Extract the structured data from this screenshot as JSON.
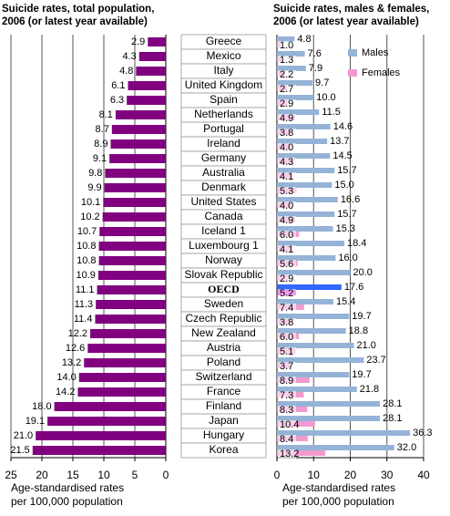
{
  "chart_data": [
    {
      "type": "bar",
      "orientation": "horizontal",
      "title": [
        "Suicide rates, total population,",
        "2006 (or latest year available)"
      ],
      "xlabel": [
        "Age-standardised rates",
        "per 100,000 population"
      ],
      "categories": [
        "Greece",
        "Mexico",
        "Italy",
        "United Kingdom",
        "Spain",
        "Netherlands",
        "Portugal",
        "Ireland",
        "Germany",
        "Australia",
        "Denmark",
        "United States",
        "Canada",
        "Iceland 1",
        "Luxembourg 1",
        "Norway",
        "Slovak Republic",
        "OECD",
        "Sweden",
        "Czech Republic",
        "New Zealand",
        "Austria",
        "Poland",
        "Switzerland",
        "France",
        "Finland",
        "Japan",
        "Hungary",
        "Korea"
      ],
      "values": [
        2.9,
        4.3,
        4.8,
        6.1,
        6.3,
        8.1,
        8.7,
        8.9,
        9.1,
        9.8,
        9.9,
        10.1,
        10.2,
        10.7,
        10.8,
        10.8,
        10.9,
        11.1,
        11.3,
        11.4,
        12.2,
        12.6,
        13.2,
        14.0,
        14.2,
        18.0,
        19.1,
        21.0,
        21.5
      ],
      "value_labels": [
        "2.9",
        "4.3",
        "4.8",
        "6.1",
        "6.3",
        "8.1",
        "8.7",
        "8.9",
        "9.1",
        "9.8",
        "9.9",
        "10.1",
        "10.2",
        "10.7",
        "10.8",
        "10.8",
        "10.9",
        "11.1",
        "11.3",
        "11.4",
        "12.2",
        "12.6",
        "13.2",
        "14.0",
        "14.2",
        "18.0",
        "19.1",
        "21.0",
        "21.5"
      ],
      "color": "#800080",
      "xlim": [
        25,
        0
      ],
      "xticks": [
        25,
        20,
        15,
        10,
        5,
        0
      ],
      "grid": true
    },
    {
      "type": "grouped-bar",
      "orientation": "horizontal",
      "title": [
        "Suicide rates, males & females,",
        "2006 (or latest year available)"
      ],
      "xlabel": [
        "Age-standardised rates",
        "per 100,000 population"
      ],
      "series": [
        {
          "name": "Males",
          "color": "#95b3d7",
          "highlight_color": "#3366ff",
          "values": [
            4.8,
            7.6,
            7.9,
            9.7,
            10.0,
            11.5,
            14.6,
            13.7,
            14.5,
            15.7,
            15.0,
            16.6,
            15.7,
            15.3,
            18.4,
            16.0,
            20.0,
            17.6,
            15.4,
            19.7,
            18.8,
            21.0,
            23.7,
            19.7,
            21.8,
            28.1,
            28.1,
            36.3,
            32.0
          ],
          "value_labels": [
            "4.8",
            "7.6",
            "7.9",
            "9.7",
            "10.0",
            "11.5",
            "14.6",
            "13.7",
            "14.5",
            "15.7",
            "15.0",
            "16.6",
            "15.7",
            "15.3",
            "18.4",
            "16.0",
            "20.0",
            "17.6",
            "15.4",
            "19.7",
            "18.8",
            "21.0",
            "23.7",
            "19.7",
            "21.8",
            "28.1",
            "28.1",
            "36.3",
            "32.0"
          ]
        },
        {
          "name": "Females",
          "color": "#f09ad0",
          "highlight_color": "#dd22dd",
          "values": [
            1.0,
            1.3,
            2.2,
            2.7,
            2.9,
            4.9,
            3.8,
            4.0,
            4.3,
            4.1,
            5.3,
            4.0,
            4.9,
            6.0,
            4.1,
            5.6,
            2.9,
            5.2,
            7.4,
            3.8,
            6.0,
            5.1,
            3.7,
            8.9,
            7.3,
            8.3,
            10.4,
            8.4,
            13.2
          ],
          "value_labels": [
            "1.0",
            "1.3",
            "2.2",
            "2.7",
            "2.9",
            "4.9",
            "3.8",
            "4.0",
            "4.3",
            "4.1",
            "5.3",
            "4.0",
            "4.9",
            "6.0",
            "4.1",
            "5.6",
            "2.9",
            "5.2",
            "7.4",
            "3.8",
            "6.0",
            "5.1",
            "3.7",
            "8.9",
            "7.3",
            "8.3",
            "10.4",
            "8.4",
            "13.2"
          ]
        }
      ],
      "highlight": 17,
      "xlim": [
        0,
        40
      ],
      "xticks": [
        0,
        10,
        20,
        30,
        40
      ],
      "grid": true,
      "legend": "top-right"
    }
  ]
}
